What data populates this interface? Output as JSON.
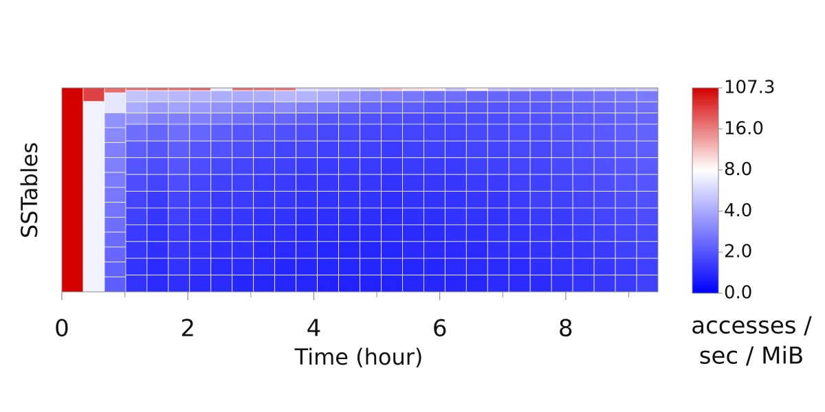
{
  "chart_data": {
    "type": "heatmap",
    "x_label": "Time (hour)",
    "y_label": "SSTables",
    "xlim": [
      0,
      9.464
    ],
    "xticks": [
      0,
      2,
      4,
      6,
      8
    ],
    "xminorticks": [
      1,
      3,
      5,
      7,
      9
    ],
    "bins": [
      0,
      0.338,
      0.676,
      1.014,
      1.352,
      1.69,
      2.028,
      2.366,
      2.704,
      3.042,
      3.38,
      3.718,
      4.056,
      4.394,
      4.732,
      5.07,
      5.408,
      5.746,
      6.084,
      6.422,
      6.76,
      7.098,
      7.436,
      7.774,
      8.112,
      8.45,
      8.788,
      9.126,
      9.464
    ],
    "columns": [
      {
        "values": [
          107.3
        ],
        "sizes": [
          1
        ]
      },
      {
        "values": [
          60,
          7.4
        ],
        "sizes": [
          1,
          14
        ]
      },
      {
        "values": [
          30,
          6.8,
          3.4,
          3.2,
          3.0,
          3.0,
          2.9,
          2.8,
          2.7,
          2.6,
          2.5,
          2.4,
          2.3,
          2.2
        ],
        "sizes": [
          2,
          8,
          6,
          6,
          6,
          6,
          6,
          6,
          6,
          6,
          6,
          6,
          6,
          6
        ]
      },
      {
        "values": [
          25,
          5.2,
          4.0,
          3.4,
          2.6,
          2.2,
          2.0,
          1.8,
          1.6,
          1.5,
          1.4,
          1.3,
          1.2,
          1.2
        ],
        "sizes": [
          1,
          4,
          4,
          4,
          6,
          6,
          6,
          6,
          6,
          6,
          6,
          6,
          6,
          6
        ]
      },
      {
        "values": [
          30,
          4.8,
          3.6,
          3.0,
          2.4,
          2.0,
          1.8,
          1.6,
          1.4,
          1.3,
          1.2,
          1.1,
          1.0,
          1.0
        ],
        "sizes": [
          1,
          4,
          4,
          4,
          6,
          6,
          6,
          6,
          6,
          6,
          6,
          6,
          6,
          6
        ]
      },
      {
        "values": [
          28,
          4.6,
          3.8,
          3.0,
          2.6,
          2.2,
          2.0,
          1.8,
          1.6,
          1.5,
          1.4,
          1.3,
          1.2,
          1.1
        ],
        "sizes": [
          1,
          4,
          4,
          4,
          6,
          6,
          6,
          6,
          6,
          6,
          6,
          6,
          6,
          6
        ]
      },
      {
        "values": [
          35,
          4.4,
          3.6,
          3.0,
          2.4,
          2.0,
          1.8,
          1.6,
          1.5,
          1.4,
          1.3,
          1.2,
          1.1,
          1.0
        ],
        "sizes": [
          1,
          4,
          4,
          4,
          6,
          6,
          6,
          6,
          6,
          6,
          6,
          6,
          6,
          6
        ]
      },
      {
        "values": [
          7.0,
          4.2,
          3.4,
          2.8,
          2.2,
          1.9,
          1.7,
          1.5,
          1.4,
          1.3,
          1.2,
          1.1,
          1.0,
          1.0
        ],
        "sizes": [
          1,
          4,
          4,
          4,
          6,
          6,
          6,
          6,
          6,
          6,
          6,
          6,
          6,
          6
        ]
      },
      {
        "values": [
          30,
          4.0,
          3.2,
          2.6,
          2.0,
          1.8,
          1.6,
          1.5,
          1.4,
          1.3,
          1.2,
          1.1,
          1.0,
          0.9
        ],
        "sizes": [
          1,
          4,
          4,
          4,
          6,
          6,
          6,
          6,
          6,
          6,
          6,
          6,
          6,
          6
        ]
      },
      {
        "values": [
          28,
          4.2,
          3.0,
          2.4,
          2.0,
          1.7,
          1.5,
          1.4,
          1.3,
          1.2,
          1.1,
          1.0,
          1.0,
          0.9
        ],
        "sizes": [
          1,
          4,
          4,
          4,
          6,
          6,
          6,
          6,
          6,
          6,
          6,
          6,
          6,
          6
        ]
      },
      {
        "values": [
          25,
          4.6,
          3.2,
          2.4,
          1.9,
          1.6,
          1.5,
          1.4,
          1.3,
          1.2,
          1.1,
          1.0,
          0.9,
          0.9
        ],
        "sizes": [
          1,
          4,
          4,
          4,
          6,
          6,
          6,
          6,
          6,
          6,
          6,
          6,
          6,
          6
        ]
      },
      {
        "values": [
          6.0,
          4.4,
          3.0,
          2.2,
          1.8,
          1.6,
          1.4,
          1.3,
          1.2,
          1.1,
          1.0,
          1.0,
          0.9,
          0.9
        ],
        "sizes": [
          1,
          4,
          4,
          4,
          6,
          6,
          6,
          6,
          6,
          6,
          6,
          6,
          6,
          6
        ]
      },
      {
        "values": [
          5.6,
          4.0,
          2.8,
          2.0,
          1.7,
          1.5,
          1.4,
          1.3,
          1.2,
          1.1,
          1.0,
          0.9,
          0.9,
          0.8
        ],
        "sizes": [
          1,
          4,
          4,
          4,
          6,
          6,
          6,
          6,
          6,
          6,
          6,
          6,
          6,
          6
        ]
      },
      {
        "values": [
          5.4,
          3.6,
          2.6,
          2.0,
          1.7,
          1.5,
          1.4,
          1.3,
          1.2,
          1.1,
          1.0,
          0.9,
          0.9,
          0.8
        ],
        "sizes": [
          1,
          4,
          4,
          4,
          6,
          6,
          6,
          6,
          6,
          6,
          6,
          6,
          6,
          6
        ]
      },
      {
        "values": [
          5.0,
          3.2,
          2.4,
          1.9,
          1.6,
          1.5,
          1.4,
          1.3,
          1.2,
          1.1,
          1.0,
          0.9,
          0.9,
          0.8
        ],
        "sizes": [
          1,
          4,
          4,
          4,
          6,
          6,
          6,
          6,
          6,
          6,
          6,
          6,
          6,
          6
        ]
      },
      {
        "values": [
          12,
          3.0,
          2.2,
          1.8,
          1.6,
          1.4,
          1.3,
          1.2,
          1.1,
          1.0,
          1.0,
          0.9,
          0.9,
          0.8
        ],
        "sizes": [
          1,
          4,
          4,
          4,
          6,
          6,
          6,
          6,
          6,
          6,
          6,
          6,
          6,
          6
        ]
      },
      {
        "values": [
          10,
          2.8,
          2.2,
          1.8,
          1.6,
          1.5,
          1.4,
          1.3,
          1.2,
          1.1,
          1.0,
          1.0,
          0.9,
          0.9
        ],
        "sizes": [
          1,
          4,
          4,
          4,
          6,
          6,
          6,
          6,
          6,
          6,
          6,
          6,
          6,
          6
        ]
      },
      {
        "values": [
          9.5,
          2.6,
          2.0,
          1.7,
          1.6,
          1.5,
          1.4,
          1.3,
          1.2,
          1.1,
          1.0,
          1.0,
          0.9,
          0.9
        ],
        "sizes": [
          1,
          4,
          4,
          4,
          6,
          6,
          6,
          6,
          6,
          6,
          6,
          6,
          6,
          6
        ]
      },
      {
        "values": [
          5.0,
          2.6,
          2.0,
          1.8,
          1.6,
          1.5,
          1.4,
          1.3,
          1.2,
          1.2,
          1.1,
          1.0,
          1.0,
          0.9
        ],
        "sizes": [
          1,
          4,
          4,
          4,
          6,
          6,
          6,
          6,
          6,
          6,
          6,
          6,
          6,
          6
        ]
      },
      {
        "values": [
          9.0,
          2.4,
          2.0,
          1.8,
          1.7,
          1.6,
          1.5,
          1.4,
          1.3,
          1.2,
          1.1,
          1.0,
          1.0,
          0.9
        ],
        "sizes": [
          1,
          4,
          4,
          4,
          6,
          6,
          6,
          6,
          6,
          6,
          6,
          6,
          6,
          6
        ]
      },
      {
        "values": [
          4.8,
          2.4,
          2.0,
          1.8,
          1.7,
          1.6,
          1.5,
          1.4,
          1.3,
          1.2,
          1.2,
          1.1,
          1.0,
          1.0
        ],
        "sizes": [
          1,
          4,
          4,
          4,
          6,
          6,
          6,
          6,
          6,
          6,
          6,
          6,
          6,
          6
        ]
      },
      {
        "values": [
          4.6,
          2.4,
          2.1,
          1.9,
          1.8,
          1.7,
          1.6,
          1.5,
          1.4,
          1.3,
          1.2,
          1.1,
          1.0,
          1.0
        ],
        "sizes": [
          1,
          4,
          4,
          4,
          6,
          6,
          6,
          6,
          6,
          6,
          6,
          6,
          6,
          6
        ]
      },
      {
        "values": [
          4.4,
          2.4,
          2.1,
          1.9,
          1.8,
          1.7,
          1.6,
          1.5,
          1.5,
          1.4,
          1.3,
          1.2,
          1.1,
          1.0
        ],
        "sizes": [
          1,
          4,
          4,
          4,
          6,
          6,
          6,
          6,
          6,
          6,
          6,
          6,
          6,
          6
        ]
      },
      {
        "values": [
          4.4,
          2.5,
          2.2,
          2.0,
          1.9,
          1.8,
          1.7,
          1.6,
          1.5,
          1.4,
          1.3,
          1.2,
          1.2,
          1.1
        ],
        "sizes": [
          1,
          4,
          4,
          4,
          6,
          6,
          6,
          6,
          6,
          6,
          6,
          6,
          6,
          6
        ]
      },
      {
        "values": [
          4.6,
          2.6,
          2.3,
          2.1,
          2.0,
          1.9,
          1.8,
          1.7,
          1.6,
          1.5,
          1.4,
          1.3,
          1.2,
          1.2
        ],
        "sizes": [
          1,
          4,
          4,
          4,
          6,
          6,
          6,
          6,
          6,
          6,
          6,
          6,
          6,
          6
        ]
      },
      {
        "values": [
          4.8,
          2.7,
          2.4,
          2.2,
          2.1,
          2.0,
          1.9,
          1.8,
          1.7,
          1.6,
          1.5,
          1.4,
          1.3,
          1.3
        ],
        "sizes": [
          1,
          4,
          4,
          4,
          6,
          6,
          6,
          6,
          6,
          6,
          6,
          6,
          6,
          6
        ]
      },
      {
        "values": [
          5.0,
          2.8,
          2.5,
          2.3,
          2.2,
          2.1,
          2.0,
          1.9,
          1.8,
          1.7,
          1.6,
          1.5,
          1.4,
          1.4
        ],
        "sizes": [
          1,
          4,
          4,
          4,
          6,
          6,
          6,
          6,
          6,
          6,
          6,
          6,
          6,
          6
        ]
      },
      {
        "values": [
          5.2,
          2.9,
          2.6,
          2.4,
          2.3,
          2.2,
          2.1,
          2.0,
          1.9,
          1.8,
          1.7,
          1.6,
          1.5,
          1.5
        ],
        "sizes": [
          1,
          4,
          4,
          4,
          6,
          6,
          6,
          6,
          6,
          6,
          6,
          6,
          6,
          6
        ]
      }
    ],
    "colormap": [
      {
        "value": 0,
        "color": "#0000ff"
      },
      {
        "value": 8,
        "color": "#ffffff"
      },
      {
        "value": 107.3,
        "color": "#d40000"
      }
    ],
    "colorbar_ticks": [
      {
        "value": 0,
        "label": "0.0"
      },
      {
        "value": 2,
        "label": "2.0"
      },
      {
        "value": 4,
        "label": "4.0"
      },
      {
        "value": 8,
        "label": "8.0"
      },
      {
        "value": 16,
        "label": "16.0"
      },
      {
        "value": 107.3,
        "label": "107.3"
      }
    ],
    "colorbar_label": [
      "accesses /",
      "sec / MiB"
    ]
  }
}
